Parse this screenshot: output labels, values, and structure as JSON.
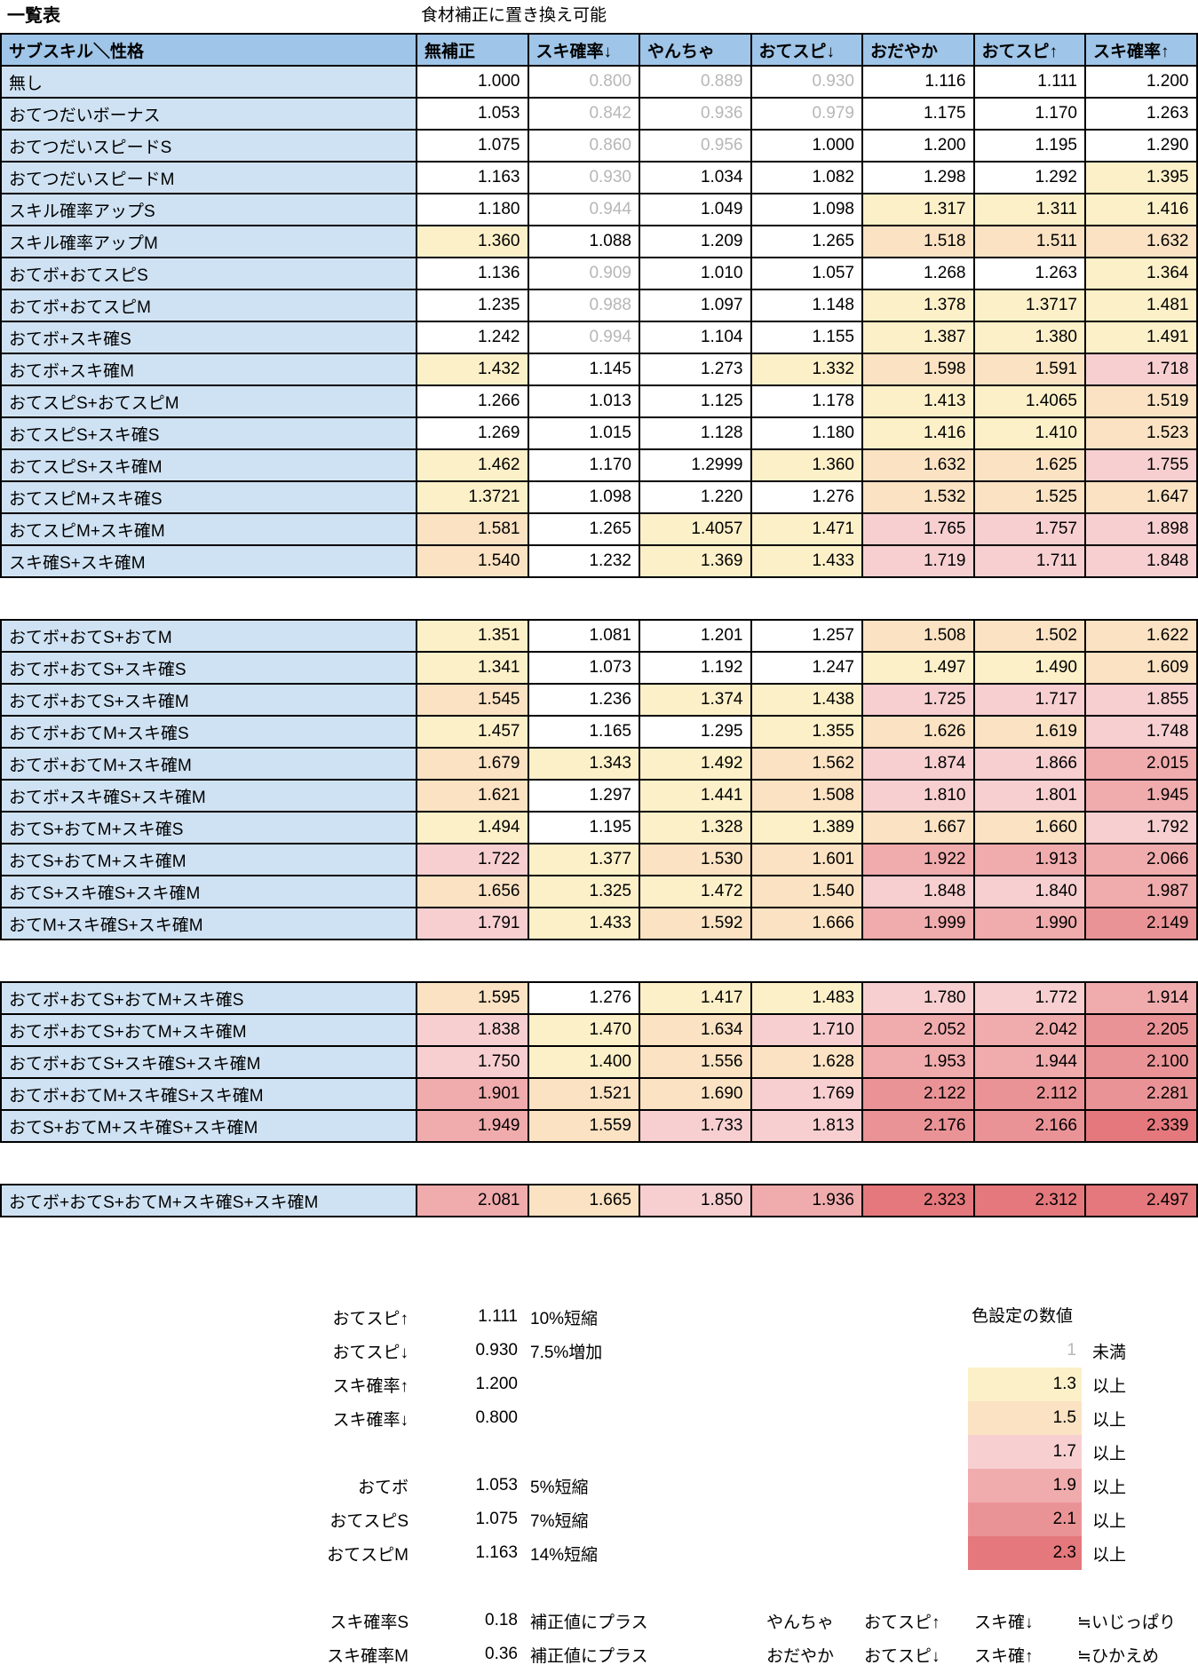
{
  "page": {
    "title": "一覧表",
    "subtitle": "食材補正に置き換え可能"
  },
  "table": {
    "corner_header": "サブスキル＼性格",
    "columns": [
      "無補正",
      "スキ確率↓",
      "やんちゃ",
      "おてスピ↓",
      "おだやか",
      "おてスピ↑",
      "スキ確率↑"
    ],
    "blocks": [
      {
        "rows": [
          {
            "label": "無し",
            "values": [
              "1.000",
              "0.800",
              "0.889",
              "0.930",
              "1.116",
              "1.111",
              "1.200"
            ]
          },
          {
            "label": "おてつだいボーナス",
            "values": [
              "1.053",
              "0.842",
              "0.936",
              "0.979",
              "1.175",
              "1.170",
              "1.263"
            ]
          },
          {
            "label": "おてつだいスピードS",
            "values": [
              "1.075",
              "0.860",
              "0.956",
              "1.000",
              "1.200",
              "1.195",
              "1.290"
            ]
          },
          {
            "label": "おてつだいスピードM",
            "values": [
              "1.163",
              "0.930",
              "1.034",
              "1.082",
              "1.298",
              "1.292",
              "1.395"
            ]
          },
          {
            "label": "スキル確率アップS",
            "values": [
              "1.180",
              "0.944",
              "1.049",
              "1.098",
              "1.317",
              "1.311",
              "1.416"
            ]
          },
          {
            "label": "スキル確率アップM",
            "values": [
              "1.360",
              "1.088",
              "1.209",
              "1.265",
              "1.518",
              "1.511",
              "1.632"
            ]
          },
          {
            "label": "おてボ+おてスピS",
            "values": [
              "1.136",
              "0.909",
              "1.010",
              "1.057",
              "1.268",
              "1.263",
              "1.364"
            ]
          },
          {
            "label": "おてボ+おてスピM",
            "values": [
              "1.235",
              "0.988",
              "1.097",
              "1.148",
              "1.378",
              "1.3717",
              "1.481"
            ]
          },
          {
            "label": "おてボ+スキ確S",
            "values": [
              "1.242",
              "0.994",
              "1.104",
              "1.155",
              "1.387",
              "1.380",
              "1.491"
            ]
          },
          {
            "label": "おてボ+スキ確M",
            "values": [
              "1.432",
              "1.145",
              "1.273",
              "1.332",
              "1.598",
              "1.591",
              "1.718"
            ]
          },
          {
            "label": "おてスピS+おてスピM",
            "values": [
              "1.266",
              "1.013",
              "1.125",
              "1.178",
              "1.413",
              "1.4065",
              "1.519"
            ]
          },
          {
            "label": "おてスピS+スキ確S",
            "values": [
              "1.269",
              "1.015",
              "1.128",
              "1.180",
              "1.416",
              "1.410",
              "1.523"
            ]
          },
          {
            "label": "おてスピS+スキ確M",
            "values": [
              "1.462",
              "1.170",
              "1.2999",
              "1.360",
              "1.632",
              "1.625",
              "1.755"
            ]
          },
          {
            "label": "おてスピM+スキ確S",
            "values": [
              "1.3721",
              "1.098",
              "1.220",
              "1.276",
              "1.532",
              "1.525",
              "1.647"
            ]
          },
          {
            "label": "おてスピM+スキ確M",
            "values": [
              "1.581",
              "1.265",
              "1.4057",
              "1.471",
              "1.765",
              "1.757",
              "1.898"
            ]
          },
          {
            "label": "スキ確S+スキ確M",
            "values": [
              "1.540",
              "1.232",
              "1.369",
              "1.433",
              "1.719",
              "1.711",
              "1.848"
            ]
          }
        ]
      },
      {
        "rows": [
          {
            "label": "おてボ+おてS+おてM",
            "values": [
              "1.351",
              "1.081",
              "1.201",
              "1.257",
              "1.508",
              "1.502",
              "1.622"
            ]
          },
          {
            "label": "おてボ+おてS+スキ確S",
            "values": [
              "1.341",
              "1.073",
              "1.192",
              "1.247",
              "1.497",
              "1.490",
              "1.609"
            ]
          },
          {
            "label": "おてボ+おてS+スキ確M",
            "values": [
              "1.545",
              "1.236",
              "1.374",
              "1.438",
              "1.725",
              "1.717",
              "1.855"
            ]
          },
          {
            "label": "おてボ+おてM+スキ確S",
            "values": [
              "1.457",
              "1.165",
              "1.295",
              "1.355",
              "1.626",
              "1.619",
              "1.748"
            ]
          },
          {
            "label": "おてボ+おてM+スキ確M",
            "values": [
              "1.679",
              "1.343",
              "1.492",
              "1.562",
              "1.874",
              "1.866",
              "2.015"
            ]
          },
          {
            "label": "おてボ+スキ確S+スキ確M",
            "values": [
              "1.621",
              "1.297",
              "1.441",
              "1.508",
              "1.810",
              "1.801",
              "1.945"
            ]
          },
          {
            "label": "おてS+おてM+スキ確S",
            "values": [
              "1.494",
              "1.195",
              "1.328",
              "1.389",
              "1.667",
              "1.660",
              "1.792"
            ]
          },
          {
            "label": "おてS+おてM+スキ確M",
            "values": [
              "1.722",
              "1.377",
              "1.530",
              "1.601",
              "1.922",
              "1.913",
              "2.066"
            ]
          },
          {
            "label": "おてS+スキ確S+スキ確M",
            "values": [
              "1.656",
              "1.325",
              "1.472",
              "1.540",
              "1.848",
              "1.840",
              "1.987"
            ]
          },
          {
            "label": "おてM+スキ確S+スキ確M",
            "values": [
              "1.791",
              "1.433",
              "1.592",
              "1.666",
              "1.999",
              "1.990",
              "2.149"
            ]
          }
        ]
      },
      {
        "rows": [
          {
            "label": "おてボ+おてS+おてM+スキ確S",
            "values": [
              "1.595",
              "1.276",
              "1.417",
              "1.483",
              "1.780",
              "1.772",
              "1.914"
            ]
          },
          {
            "label": "おてボ+おてS+おてM+スキ確M",
            "values": [
              "1.838",
              "1.470",
              "1.634",
              "1.710",
              "2.052",
              "2.042",
              "2.205"
            ]
          },
          {
            "label": "おてボ+おてS+スキ確S+スキ確M",
            "values": [
              "1.750",
              "1.400",
              "1.556",
              "1.628",
              "1.953",
              "1.944",
              "2.100"
            ]
          },
          {
            "label": "おてボ+おてM+スキ確S+スキ確M",
            "values": [
              "1.901",
              "1.521",
              "1.690",
              "1.769",
              "2.122",
              "2.112",
              "2.281"
            ]
          },
          {
            "label": "おてS+おてM+スキ確S+スキ確M",
            "values": [
              "1.949",
              "1.559",
              "1.733",
              "1.813",
              "2.176",
              "2.166",
              "2.339"
            ]
          }
        ]
      },
      {
        "rows": [
          {
            "label": "おてボ+おてS+おてM+スキ確S+スキ確M",
            "values": [
              "2.081",
              "1.665",
              "1.850",
              "1.936",
              "2.323",
              "2.312",
              "2.497"
            ]
          }
        ]
      }
    ]
  },
  "modifier_legend": {
    "groups": [
      {
        "items": [
          {
            "label": "おてスピ↑",
            "value": "1.111",
            "desc": "10%短縮"
          },
          {
            "label": "おてスピ↓",
            "value": "0.930",
            "desc": "7.5%増加"
          },
          {
            "label": "スキ確率↑",
            "value": "1.200",
            "desc": ""
          },
          {
            "label": "スキ確率↓",
            "value": "0.800",
            "desc": ""
          }
        ]
      },
      {
        "items": [
          {
            "label": "おてボ",
            "value": "1.053",
            "desc": "5%短縮"
          },
          {
            "label": "おてスピS",
            "value": "1.075",
            "desc": "7%短縮"
          },
          {
            "label": "おてスピM",
            "value": "1.163",
            "desc": "14%短縮"
          }
        ]
      },
      {
        "items": [
          {
            "label": "スキ確率S",
            "value": "0.18",
            "desc": "補正値にプラス"
          },
          {
            "label": "スキ確率M",
            "value": "0.36",
            "desc": "補正値にプラス"
          }
        ]
      }
    ]
  },
  "color_legend": {
    "title": "色設定の数値",
    "entries": [
      {
        "value": "1",
        "suffix": "未満"
      },
      {
        "value": "1.3",
        "suffix": "以上"
      },
      {
        "value": "1.5",
        "suffix": "以上"
      },
      {
        "value": "1.7",
        "suffix": "以上"
      },
      {
        "value": "1.9",
        "suffix": "以上"
      },
      {
        "value": "2.1",
        "suffix": "以上"
      },
      {
        "value": "2.3",
        "suffix": "以上"
      }
    ]
  },
  "nature_notes": [
    {
      "nature": "やんちゃ",
      "effects": [
        "おてスピ↑",
        "スキ確↓"
      ],
      "equiv": "≒いじっぱり"
    },
    {
      "nature": "おだやか",
      "effects": [
        "おてスピ↓",
        "スキ確↑"
      ],
      "equiv": "≒ひかえめ"
    }
  ],
  "colors": {
    "header_bg": "#9fc5e8",
    "row_label_bg": "#cfe2f3",
    "grid_border": "#000000",
    "below_one_text": "#b7b7b7",
    "tiers": [
      {
        "min": 2.3,
        "bg": "#e4787c"
      },
      {
        "min": 2.1,
        "bg": "#ea9396"
      },
      {
        "min": 1.9,
        "bg": "#f0abad"
      },
      {
        "min": 1.7,
        "bg": "#f7cfd1"
      },
      {
        "min": 1.5,
        "bg": "#fae2c2"
      },
      {
        "min": 1.3,
        "bg": "#fcf0c8"
      }
    ]
  }
}
